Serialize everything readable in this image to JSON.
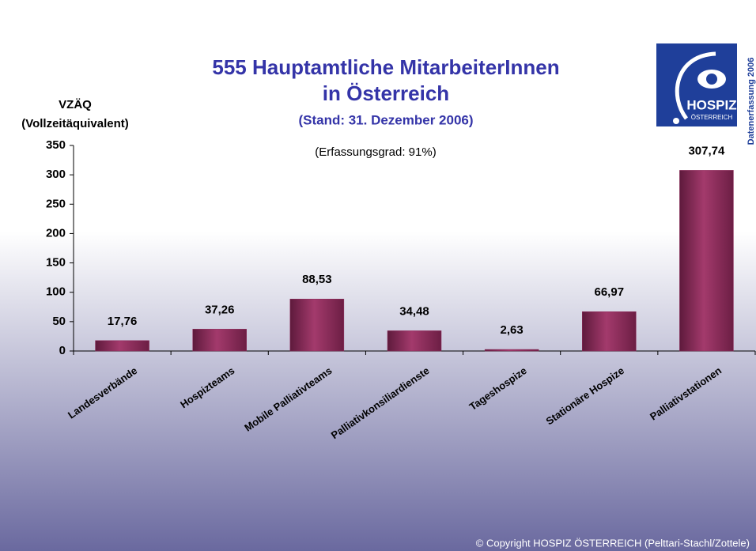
{
  "chart_data": {
    "type": "bar",
    "title": "555 Hauptamtliche MitarbeiterInnen",
    "title_line2": "in Österreich",
    "subtitle": "(Stand: 31. Dezember 2006)",
    "annotation": "(Erfassungsgrad: 91%)",
    "y_label": "VZÄQ",
    "y_label_line2": "(Vollzeitäquivalent)",
    "categories": [
      "Landesverbände",
      "Hospizteams",
      "Mobile Palliativteams",
      "Palliativkonsiliardienste",
      "Tageshospize",
      "Stationäre Hospize",
      "Palliativstationen"
    ],
    "values": [
      17.76,
      37.26,
      88.53,
      34.48,
      2.63,
      66.97,
      307.74
    ],
    "value_labels": [
      "17,76",
      "37,26",
      "88,53",
      "34,48",
      "2,63",
      "66,97",
      "307,74"
    ],
    "color": "#8e2a5a",
    "ylim": [
      0,
      350
    ],
    "yticks": [
      0,
      50,
      100,
      150,
      200,
      250,
      300,
      350
    ],
    "grid": false
  },
  "logo": {
    "name": "HOSPIZ",
    "subname": "ÖSTERREICH",
    "side_text": "Datenerfassung 2006"
  },
  "footer": "© Copyright HOSPIZ ÖSTERREICH (Pelttari-Stachl/Zottele)"
}
